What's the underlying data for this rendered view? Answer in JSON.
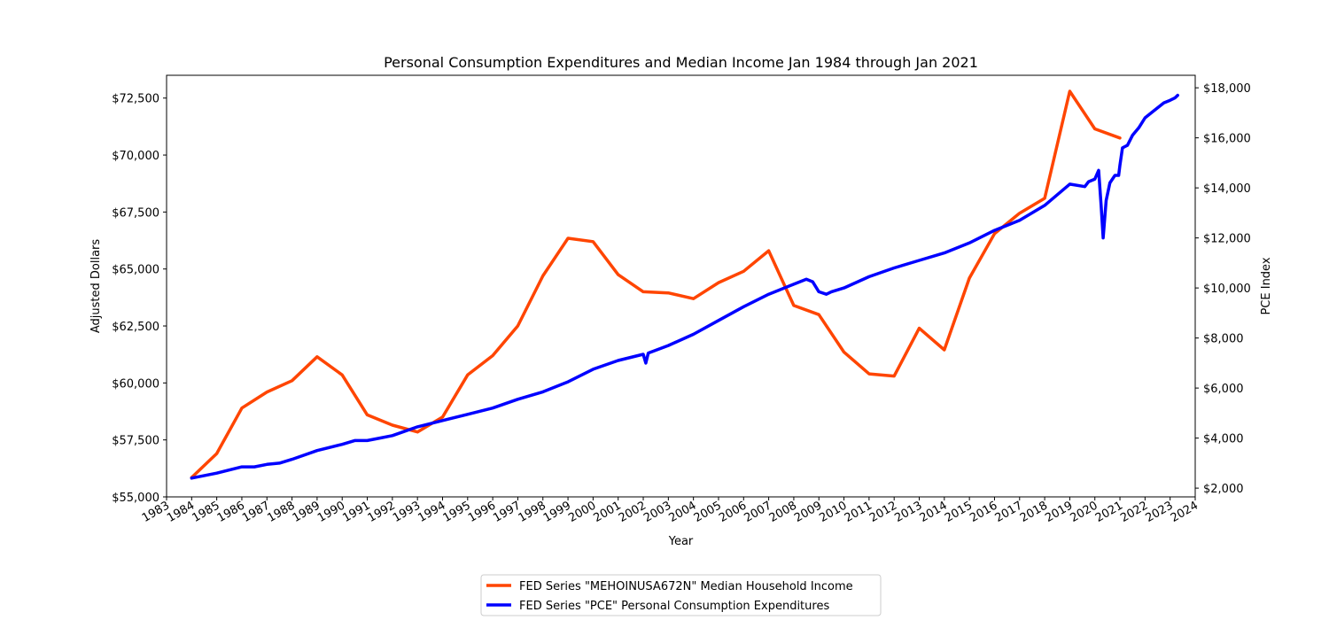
{
  "chart_data": {
    "type": "line",
    "title": "Personal Consumption Expenditures and Median Income Jan 1984 through Jan 2021",
    "xlabel": "Year",
    "ylabel_left": "Adjusted Dollars",
    "ylabel_right": "PCE Index",
    "xlim": [
      1983,
      2024
    ],
    "x_ticks": [
      "1983",
      "1984",
      "1985",
      "1986",
      "1987",
      "1988",
      "1989",
      "1990",
      "1991",
      "1992",
      "1993",
      "1994",
      "1995",
      "1996",
      "1997",
      "1998",
      "1999",
      "2000",
      "2001",
      "2002",
      "2003",
      "2004",
      "2005",
      "2006",
      "2007",
      "2008",
      "2009",
      "2010",
      "2011",
      "2012",
      "2013",
      "2014",
      "2015",
      "2016",
      "2017",
      "2018",
      "2019",
      "2020",
      "2021",
      "2022",
      "2023",
      "2024"
    ],
    "ylim_left": [
      55000,
      73500
    ],
    "yticks_left": [
      55000,
      57500,
      60000,
      62500,
      65000,
      67500,
      70000,
      72500
    ],
    "yticks_left_labels": [
      "$55,000",
      "$57,500",
      "$60,000",
      "$62,500",
      "$65,000",
      "$67,500",
      "$70,000",
      "$72,500"
    ],
    "ylim_right": [
      1650,
      18500
    ],
    "yticks_right": [
      2000,
      4000,
      6000,
      8000,
      10000,
      12000,
      14000,
      16000,
      18000
    ],
    "yticks_right_labels": [
      "$2,000",
      "$4,000",
      "$6,000",
      "$8,000",
      "$10,000",
      "$12,000",
      "$14,000",
      "$16,000",
      "$18,000"
    ],
    "grid": false,
    "legend_position": "bottom-center",
    "series": [
      {
        "name": "FED Series \"MEHOINUSA672N\" Median Household Income",
        "color": "#ff4500",
        "axis": "left",
        "x": [
          1984,
          1985,
          1986,
          1987,
          1988,
          1989,
          1990,
          1991,
          1992,
          1993,
          1994,
          1995,
          1996,
          1997,
          1998,
          1999,
          2000,
          2001,
          2002,
          2003,
          2004,
          2005,
          2006,
          2007,
          2008,
          2009,
          2010,
          2011,
          2012,
          2013,
          2014,
          2015,
          2016,
          2017,
          2018,
          2019,
          2020,
          2021
        ],
        "values": [
          55850,
          56900,
          58900,
          59600,
          60100,
          61150,
          60350,
          58600,
          58150,
          57850,
          58500,
          60350,
          61200,
          62500,
          64700,
          66350,
          66200,
          64750,
          64000,
          63950,
          63700,
          64400,
          64900,
          65800,
          63400,
          63000,
          61350,
          60400,
          60300,
          62400,
          61450,
          64600,
          66550,
          67450,
          68100,
          72800,
          71150,
          70750
        ]
      },
      {
        "name": "FED Series \"PCE\" Personal Consumption Expenditures",
        "color": "#0000ff",
        "axis": "right",
        "x": [
          1984.0,
          1985.0,
          1986.0,
          1986.5,
          1987.0,
          1987.5,
          1988.0,
          1989.0,
          1990.0,
          1990.5,
          1991.0,
          1991.5,
          1992.0,
          1993.0,
          1994.0,
          1995.0,
          1996.0,
          1997.0,
          1998.0,
          1999.0,
          2000.0,
          2001.0,
          2002.0,
          2002.1,
          2002.2,
          2003.0,
          2004.0,
          2005.0,
          2006.0,
          2007.0,
          2008.0,
          2008.5,
          2008.75,
          2009.0,
          2009.3,
          2009.5,
          2010.0,
          2011.0,
          2012.0,
          2013.0,
          2014.0,
          2015.0,
          2016.0,
          2017.0,
          2018.0,
          2019.0,
          2019.6,
          2019.75,
          2020.0,
          2020.15,
          2020.25,
          2020.33,
          2020.45,
          2020.6,
          2020.8,
          2020.95,
          2021.0,
          2021.1,
          2021.3,
          2021.5,
          2021.75,
          2022.0,
          2022.5,
          2022.75,
          2023.0,
          2023.2,
          2023.3
        ],
        "values": [
          2400,
          2600,
          2850,
          2850,
          2950,
          3000,
          3150,
          3500,
          3750,
          3900,
          3900,
          4000,
          4100,
          4450,
          4700,
          4950,
          5200,
          5550,
          5850,
          6250,
          6750,
          7100,
          7350,
          7000,
          7400,
          7700,
          8150,
          8700,
          9250,
          9750,
          10150,
          10350,
          10250,
          9850,
          9750,
          9850,
          10000,
          10450,
          10800,
          11100,
          11400,
          11800,
          12300,
          12700,
          13300,
          14150,
          14050,
          14250,
          14350,
          14700,
          13300,
          12000,
          13500,
          14200,
          14500,
          14500,
          14900,
          15600,
          15700,
          16100,
          16400,
          16800,
          17200,
          17400,
          17500,
          17600,
          17700
        ]
      }
    ]
  }
}
